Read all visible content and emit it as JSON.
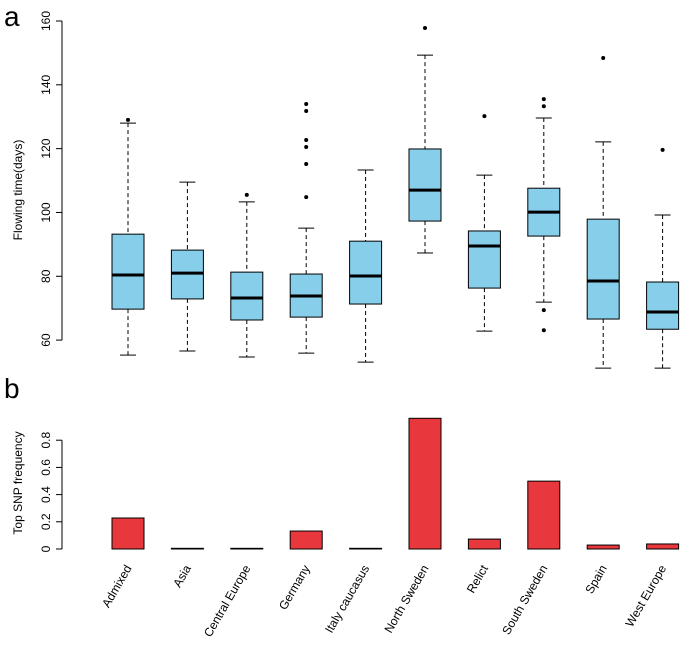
{
  "chart_data": [
    {
      "type": "box",
      "panel_label": "a",
      "y_label": "Flowing time(days)",
      "color": "#87ceeb",
      "ylim": [
        50,
        160
      ],
      "yticks": [
        60,
        80,
        100,
        120,
        140,
        160
      ],
      "boxes": [
        {
          "whisker_low": 55.3,
          "q1": 69.7,
          "median": 80.4,
          "q3": 93.2,
          "whisker_high": 128,
          "outliers": [
            129
          ]
        },
        {
          "whisker_low": 56.6,
          "q1": 72.9,
          "median": 81,
          "q3": 88.2,
          "whisker_high": 109.5,
          "outliers": []
        },
        {
          "whisker_low": 54.7,
          "q1": 66.3,
          "median": 73.2,
          "q3": 81.3,
          "whisker_high": 103.3,
          "outliers": [
            105.5
          ]
        },
        {
          "whisker_low": 55.9,
          "q1": 67.2,
          "median": 73.8,
          "q3": 80.7,
          "whisker_high": 95.1,
          "outliers": [
            104.8,
            115.2,
            120.5,
            122.7,
            131.8,
            134
          ]
        },
        {
          "whisker_low": 53.1,
          "q1": 71.3,
          "median": 80.1,
          "q3": 91,
          "whisker_high": 113.3,
          "outliers": []
        },
        {
          "whisker_low": 87.3,
          "q1": 97.3,
          "median": 107,
          "q3": 119.9,
          "whisker_high": 149.3,
          "outliers": [
            157.8
          ]
        },
        {
          "whisker_low": 62.8,
          "q1": 76.3,
          "median": 89.5,
          "q3": 94.2,
          "whisker_high": 111.7,
          "outliers": [
            130.2
          ]
        },
        {
          "whisker_low": 71.9,
          "q1": 92.6,
          "median": 100.1,
          "q3": 107.6,
          "whisker_high": 129.6,
          "outliers": [
            63.1,
            69.4,
            133.3,
            135.5
          ]
        },
        {
          "whisker_low": 51.2,
          "q1": 66.6,
          "median": 78.5,
          "q3": 97.9,
          "whisker_high": 122.1,
          "outliers": [
            148.4
          ]
        },
        {
          "whisker_low": 51.2,
          "q1": 63.4,
          "median": 68.8,
          "q3": 78.2,
          "whisker_high": 99.2,
          "outliers": [
            119.6
          ]
        }
      ]
    },
    {
      "type": "bar",
      "panel_label": "b",
      "y_label": "Top SNP frequency",
      "color": "#e8383d",
      "categories": [
        "Admixed",
        "Asia",
        "Central Europe",
        "Germany",
        "Italy caucasus",
        "North Sweden",
        "Relict",
        "South Sweden",
        "Spain",
        "West Europe"
      ],
      "values": [
        0.228,
        0.005,
        0.005,
        0.132,
        0.005,
        0.961,
        0.073,
        0.499,
        0.029,
        0.037
      ],
      "ylim": [
        0,
        1
      ],
      "yticks": [
        0,
        0.2,
        0.4,
        0.6,
        0.8
      ]
    }
  ]
}
